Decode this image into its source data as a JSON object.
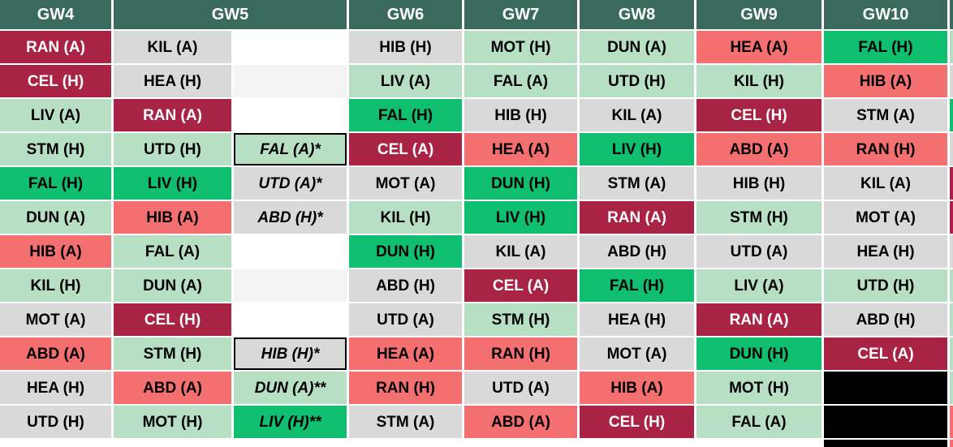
{
  "palette": {
    "header_bg": "#3A6A5C",
    "header_text": "#FFFFFF",
    "darkred": "#A92345",
    "red": "#F47070",
    "grey": "#D9D9D9",
    "lightgreen": "#B7DFC3",
    "green": "#0FBE6F",
    "white": "#FFFFFF",
    "white_alt": "#F3F3F3",
    "black": "#000000",
    "text_dark": "#000000",
    "text_light": "#FFFFFF"
  },
  "header": {
    "cells": [
      {
        "label": "GW4",
        "span": 1
      },
      {
        "label": "GW5",
        "span": 2
      },
      {
        "label": "GW6",
        "span": 1
      },
      {
        "label": "GW7",
        "span": 1
      },
      {
        "label": "GW8",
        "span": 1
      },
      {
        "label": "GW9",
        "span": 1
      },
      {
        "label": "GW10",
        "span": 1
      },
      {
        "label": "",
        "span": 1
      }
    ]
  },
  "rows": [
    [
      {
        "t": "RAN (A)",
        "c": "darkred"
      },
      {
        "t": "KIL (A)",
        "c": "grey"
      },
      {
        "t": "",
        "c": "white"
      },
      {
        "t": "HIB (H)",
        "c": "grey"
      },
      {
        "t": "MOT (H)",
        "c": "lightgreen"
      },
      {
        "t": "DUN (A)",
        "c": "lightgreen"
      },
      {
        "t": "HEA (A)",
        "c": "red"
      },
      {
        "t": "FAL (H)",
        "c": "green"
      },
      {
        "t": "",
        "c": "lightgreen"
      }
    ],
    [
      {
        "t": "CEL (H)",
        "c": "darkred"
      },
      {
        "t": "HEA (H)",
        "c": "grey"
      },
      {
        "t": "",
        "c": "white_alt"
      },
      {
        "t": "LIV (A)",
        "c": "lightgreen"
      },
      {
        "t": "FAL (A)",
        "c": "lightgreen"
      },
      {
        "t": "UTD (H)",
        "c": "lightgreen"
      },
      {
        "t": "KIL (H)",
        "c": "lightgreen"
      },
      {
        "t": "HIB (A)",
        "c": "red"
      },
      {
        "t": "",
        "c": "grey"
      }
    ],
    [
      {
        "t": "LIV (A)",
        "c": "lightgreen"
      },
      {
        "t": "RAN (A)",
        "c": "darkred"
      },
      {
        "t": "",
        "c": "white"
      },
      {
        "t": "FAL (H)",
        "c": "green"
      },
      {
        "t": "HIB (H)",
        "c": "grey"
      },
      {
        "t": "KIL (A)",
        "c": "grey"
      },
      {
        "t": "CEL (H)",
        "c": "darkred"
      },
      {
        "t": "STM (A)",
        "c": "grey"
      },
      {
        "t": "",
        "c": "green"
      }
    ],
    [
      {
        "t": "STM (H)",
        "c": "lightgreen"
      },
      {
        "t": "UTD (H)",
        "c": "lightgreen"
      },
      {
        "t": "FAL (A)*",
        "c": "lightgreen",
        "i": true,
        "bd": true
      },
      {
        "t": "CEL (A)",
        "c": "darkred"
      },
      {
        "t": "HEA (A)",
        "c": "red"
      },
      {
        "t": "LIV (H)",
        "c": "green"
      },
      {
        "t": "ABD (A)",
        "c": "red"
      },
      {
        "t": "RAN (H)",
        "c": "red"
      },
      {
        "t": "",
        "c": "grey"
      }
    ],
    [
      {
        "t": "FAL (H)",
        "c": "green"
      },
      {
        "t": "LIV (H)",
        "c": "green"
      },
      {
        "t": "UTD (A)*",
        "c": "grey",
        "i": true
      },
      {
        "t": "MOT (A)",
        "c": "grey"
      },
      {
        "t": "DUN (H)",
        "c": "green"
      },
      {
        "t": "STM (A)",
        "c": "grey"
      },
      {
        "t": "HIB (H)",
        "c": "grey"
      },
      {
        "t": "KIL (A)",
        "c": "grey"
      },
      {
        "t": "",
        "c": "darkred"
      }
    ],
    [
      {
        "t": "DUN (A)",
        "c": "lightgreen"
      },
      {
        "t": "HIB (A)",
        "c": "red"
      },
      {
        "t": "ABD (H)*",
        "c": "grey",
        "i": true
      },
      {
        "t": "KIL (H)",
        "c": "lightgreen"
      },
      {
        "t": "LIV (H)",
        "c": "green"
      },
      {
        "t": "RAN (A)",
        "c": "darkred"
      },
      {
        "t": "STM (H)",
        "c": "lightgreen"
      },
      {
        "t": "MOT (A)",
        "c": "grey"
      },
      {
        "t": "",
        "c": "darkred"
      }
    ],
    [
      {
        "t": "HIB (A)",
        "c": "red"
      },
      {
        "t": "FAL (A)",
        "c": "lightgreen"
      },
      {
        "t": "",
        "c": "white"
      },
      {
        "t": "DUN (H)",
        "c": "green"
      },
      {
        "t": "KIL (A)",
        "c": "grey"
      },
      {
        "t": "ABD (H)",
        "c": "grey"
      },
      {
        "t": "UTD (A)",
        "c": "grey"
      },
      {
        "t": "HEA (H)",
        "c": "grey"
      },
      {
        "t": "",
        "c": "grey"
      }
    ],
    [
      {
        "t": "KIL (H)",
        "c": "lightgreen"
      },
      {
        "t": "DUN (A)",
        "c": "lightgreen"
      },
      {
        "t": "",
        "c": "white_alt"
      },
      {
        "t": "ABD (H)",
        "c": "grey"
      },
      {
        "t": "CEL (A)",
        "c": "darkred"
      },
      {
        "t": "FAL (H)",
        "c": "green"
      },
      {
        "t": "LIV (A)",
        "c": "lightgreen"
      },
      {
        "t": "UTD (H)",
        "c": "lightgreen"
      },
      {
        "t": "",
        "c": "lightgreen"
      }
    ],
    [
      {
        "t": "MOT (A)",
        "c": "grey"
      },
      {
        "t": "CEL (H)",
        "c": "darkred"
      },
      {
        "t": "",
        "c": "white"
      },
      {
        "t": "UTD (A)",
        "c": "grey"
      },
      {
        "t": "STM (H)",
        "c": "lightgreen"
      },
      {
        "t": "HEA (H)",
        "c": "grey"
      },
      {
        "t": "RAN (A)",
        "c": "darkred"
      },
      {
        "t": "ABD (H)",
        "c": "grey"
      },
      {
        "t": "",
        "c": "lightgreen"
      }
    ],
    [
      {
        "t": "ABD (A)",
        "c": "red"
      },
      {
        "t": "STM (H)",
        "c": "lightgreen"
      },
      {
        "t": "HIB (H)*",
        "c": "grey",
        "i": true,
        "bd": true
      },
      {
        "t": "HEA (A)",
        "c": "red"
      },
      {
        "t": "RAN (H)",
        "c": "red"
      },
      {
        "t": "MOT (A)",
        "c": "grey"
      },
      {
        "t": "DUN (H)",
        "c": "green"
      },
      {
        "t": "CEL (A)",
        "c": "darkred"
      },
      {
        "t": "",
        "c": "lightgreen"
      }
    ],
    [
      {
        "t": "HEA (H)",
        "c": "grey"
      },
      {
        "t": "ABD (A)",
        "c": "red"
      },
      {
        "t": "DUN (A)**",
        "c": "lightgreen",
        "i": true
      },
      {
        "t": "RAN (H)",
        "c": "red"
      },
      {
        "t": "UTD (A)",
        "c": "grey"
      },
      {
        "t": "HIB (A)",
        "c": "red"
      },
      {
        "t": "MOT (H)",
        "c": "lightgreen"
      },
      {
        "t": "",
        "c": "black"
      },
      {
        "t": "",
        "c": "lightgreen"
      }
    ],
    [
      {
        "t": "UTD (H)",
        "c": "grey"
      },
      {
        "t": "MOT (H)",
        "c": "lightgreen"
      },
      {
        "t": "LIV (H)**",
        "c": "green",
        "i": true
      },
      {
        "t": "STM (A)",
        "c": "grey"
      },
      {
        "t": "ABD (A)",
        "c": "red"
      },
      {
        "t": "CEL (H)",
        "c": "darkred"
      },
      {
        "t": "FAL (A)",
        "c": "lightgreen"
      },
      {
        "t": "",
        "c": "black"
      },
      {
        "t": "",
        "c": "red"
      }
    ]
  ],
  "partial_row": [
    {
      "t": "",
      "c": "white"
    },
    {
      "t": "",
      "c": "white"
    },
    {
      "t": "",
      "c": "white"
    },
    {
      "t": "",
      "c": "white"
    },
    {
      "t": "",
      "c": "white"
    },
    {
      "t": "",
      "c": "white"
    },
    {
      "t": "",
      "c": "white"
    },
    {
      "t": "",
      "c": "black"
    },
    {
      "t": "",
      "c": "red"
    }
  ]
}
